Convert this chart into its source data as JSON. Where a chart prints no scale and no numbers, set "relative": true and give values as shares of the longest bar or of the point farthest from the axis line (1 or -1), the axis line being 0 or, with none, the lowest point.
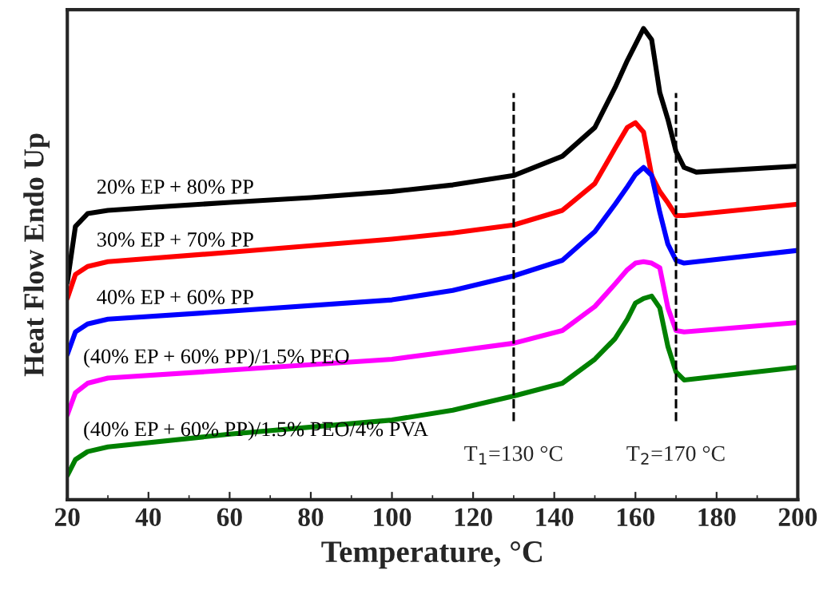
{
  "chart_data": {
    "type": "line",
    "xlabel": "Temperature, °C",
    "ylabel": "Heat Flow Endo Up",
    "relative": true,
    "xlim": [
      20,
      200
    ],
    "xticks": [
      20,
      40,
      60,
      80,
      100,
      120,
      140,
      160,
      180,
      200
    ],
    "grid": false,
    "legend": false,
    "marker": "none",
    "line_style": "solid",
    "x": [
      20,
      22,
      25,
      30,
      60,
      100,
      115,
      130,
      142,
      150,
      155,
      158,
      160,
      162,
      164,
      166,
      168,
      170,
      172,
      200
    ],
    "series": [
      {
        "name": "20% EP + 80% PP",
        "color": "#000000",
        "x": [
          20,
          22,
          25,
          30,
          40,
          60,
          80,
          100,
          115,
          130,
          142,
          150,
          155,
          158,
          162,
          164,
          166,
          168,
          170,
          172,
          175,
          200
        ],
        "values": [
          0.461,
          0.58,
          0.607,
          0.614,
          0.62,
          0.631,
          0.641,
          0.654,
          0.668,
          0.688,
          0.729,
          0.79,
          0.875,
          0.932,
          1.0,
          0.976,
          0.864,
          0.807,
          0.739,
          0.705,
          0.695,
          0.708
        ]
      },
      {
        "name": "30% EP + 70% PP",
        "color": "#ff0000",
        "values": [
          0.427,
          0.478,
          0.495,
          0.505,
          0.525,
          0.553,
          0.566,
          0.583,
          0.614,
          0.671,
          0.746,
          0.79,
          0.8,
          0.78,
          0.688,
          0.654,
          0.63,
          0.603,
          0.603,
          0.627
        ]
      },
      {
        "name": "40% EP + 60% PP",
        "color": "#0000ff",
        "values": [
          0.308,
          0.356,
          0.373,
          0.383,
          0.4,
          0.424,
          0.444,
          0.475,
          0.508,
          0.569,
          0.627,
          0.664,
          0.69,
          0.705,
          0.688,
          0.61,
          0.542,
          0.508,
          0.502,
          0.529
        ]
      },
      {
        "name": "(40% EP + 60% PP)/1.5% PEO",
        "color": "#ff00ff",
        "values": [
          0.18,
          0.227,
          0.247,
          0.258,
          0.275,
          0.298,
          0.315,
          0.332,
          0.359,
          0.41,
          0.458,
          0.488,
          0.502,
          0.505,
          0.502,
          0.492,
          0.407,
          0.359,
          0.356,
          0.376
        ]
      },
      {
        "name": "(40% EP + 60% PP)/1.5% PEO/4% PVA",
        "color": "#008000",
        "values": [
          0.051,
          0.085,
          0.102,
          0.112,
          0.139,
          0.169,
          0.19,
          0.22,
          0.247,
          0.298,
          0.342,
          0.383,
          0.417,
          0.427,
          0.432,
          0.407,
          0.325,
          0.271,
          0.254,
          0.281
        ]
      }
    ],
    "ref_lines": [
      {
        "axis": "x",
        "value": 130,
        "label": "T$_{1}$=130 °C",
        "color": "#000000",
        "line_style": "dashed"
      },
      {
        "axis": "x",
        "value": 170,
        "label": "T$_{2}$=170 °C",
        "color": "#000000",
        "line_style": "dashed"
      }
    ]
  }
}
